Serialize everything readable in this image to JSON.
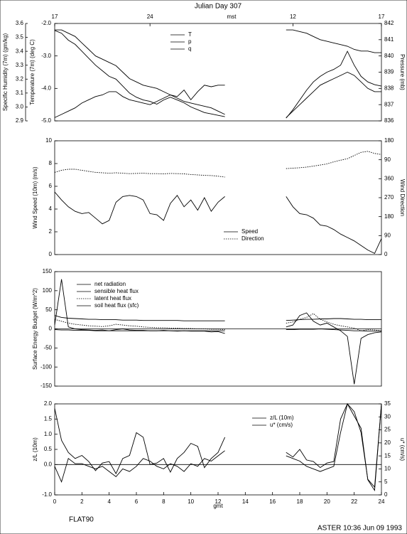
{
  "chart_data": [
    {
      "type": "line",
      "title": "Julian Day 307",
      "x2label": "mst",
      "x2ticks": [
        {
          "value": 0,
          "label": "17"
        },
        {
          "value": 7,
          "label": "24"
        },
        {
          "value": 17.5,
          "label": "12"
        },
        {
          "value": 24,
          "label": "17"
        }
      ],
      "ylabel": "Temperature (7m) (deg C)",
      "y2label": "Pressure (mb)",
      "y3label": "Specific Humidity (7m) (gm/kg)",
      "xlim": [
        0,
        24
      ],
      "ylim": [
        -5,
        -2
      ],
      "yticks": [
        {
          "value": -5,
          "label": "-5.0"
        },
        {
          "value": -4,
          "label": "-4.0"
        },
        {
          "value": -3,
          "label": "-3.0"
        },
        {
          "value": -2,
          "label": "-2.0"
        }
      ],
      "y2lim": [
        836,
        842
      ],
      "y2ticks": [
        836,
        837,
        838,
        839,
        840,
        841,
        842
      ],
      "y3lim": [
        2.9,
        3.6
      ],
      "y3ticks": [
        2.9,
        {
          "value": 3,
          "label": "3.0"
        },
        3.1,
        3.2,
        3.3,
        3.4,
        3.5,
        3.6
      ],
      "legend": "top-center",
      "x": [
        0,
        0.5,
        1,
        1.5,
        2,
        2.5,
        3,
        3.5,
        4,
        4.5,
        5,
        5.5,
        6,
        6.5,
        7,
        7.5,
        8,
        8.5,
        9,
        9.5,
        10,
        10.5,
        11,
        11.5,
        12,
        12.5,
        13,
        13.5,
        14,
        14.5,
        15,
        15.5,
        16,
        16.5,
        17,
        17.5,
        18,
        18.5,
        19,
        19.5,
        20,
        20.5,
        21,
        21.5,
        22,
        22.5,
        23,
        23.5,
        24
      ],
      "series": [
        {
          "name": "T",
          "color": "#000000",
          "style": "solid",
          "axis": "y",
          "values": [
            -2.2,
            -2.2,
            -2.3,
            -2.4,
            -2.6,
            -2.8,
            -3.0,
            -3.1,
            -3.2,
            -3.3,
            -3.5,
            -3.7,
            -3.8,
            -3.9,
            -3.95,
            -4.0,
            -4.1,
            -4.2,
            -4.3,
            -4.4,
            -4.45,
            -4.5,
            -4.55,
            -4.6,
            -4.7,
            -4.8,
            null,
            null,
            null,
            null,
            null,
            null,
            null,
            null,
            -4.9,
            -4.7,
            -4.5,
            -4.3,
            -4.1,
            -3.9,
            -3.8,
            -3.7,
            -3.6,
            -3.5,
            -3.6,
            -3.8,
            -4.0,
            -4.1,
            -4.1
          ]
        },
        {
          "name": "p",
          "color": "#000000",
          "style": "solid",
          "axis": "y2",
          "values": [
            836.2,
            836.4,
            836.6,
            836.8,
            837.1,
            837.3,
            837.5,
            837.6,
            837.8,
            837.8,
            837.5,
            837.3,
            837.2,
            837.1,
            837.0,
            837.2,
            837.4,
            837.6,
            837.5,
            837.9,
            837.3,
            837.8,
            838.2,
            838.1,
            838.2,
            838.2,
            null,
            null,
            null,
            null,
            null,
            null,
            null,
            null,
            841.6,
            841.6,
            841.5,
            841.4,
            841.2,
            841.0,
            840.9,
            840.8,
            840.7,
            840.6,
            840.4,
            840.3,
            840.3,
            840.2,
            840.2
          ]
        },
        {
          "name": "q",
          "color": "#000000",
          "style": "solid",
          "axis": "y3",
          "values": [
            3.55,
            3.53,
            3.48,
            3.45,
            3.4,
            3.35,
            3.3,
            3.26,
            3.22,
            3.2,
            3.15,
            3.1,
            3.07,
            3.05,
            3.04,
            3.02,
            3.05,
            3.07,
            3.05,
            3.03,
            3.0,
            2.98,
            2.96,
            2.95,
            2.94,
            2.93,
            null,
            null,
            null,
            null,
            null,
            null,
            null,
            null,
            2.92,
            2.98,
            3.05,
            3.12,
            3.18,
            3.22,
            3.25,
            3.27,
            3.3,
            3.4,
            3.3,
            3.22,
            3.18,
            3.16,
            3.15
          ]
        }
      ]
    },
    {
      "type": "line",
      "ylabel": "Wind Speed (10m) (m/s)",
      "y2label": "Wind Direction",
      "xlim": [
        0,
        24
      ],
      "ylim": [
        0,
        10
      ],
      "yticks": [
        0,
        2,
        4,
        6,
        8,
        10
      ],
      "y2lim": [
        0,
        540
      ],
      "y2ticks": [
        0,
        90,
        180,
        270,
        360,
        {
          "value": 450,
          "label": "90"
        },
        {
          "value": 540,
          "label": "180"
        }
      ],
      "legend": "bottom-center",
      "x": [
        0,
        0.5,
        1,
        1.5,
        2,
        2.5,
        3,
        3.5,
        4,
        4.5,
        5,
        5.5,
        6,
        6.5,
        7,
        7.5,
        8,
        8.5,
        9,
        9.5,
        10,
        10.5,
        11,
        11.5,
        12,
        12.5,
        13,
        13.5,
        14,
        14.5,
        15,
        15.5,
        16,
        16.5,
        17,
        17.5,
        18,
        18.5,
        19,
        19.5,
        20,
        20.5,
        21,
        21.5,
        22,
        22.5,
        23,
        23.5,
        24
      ],
      "series": [
        {
          "name": "Speed",
          "color": "#000000",
          "style": "solid",
          "axis": "y",
          "values": [
            5.5,
            4.8,
            4.2,
            3.8,
            3.6,
            3.7,
            3.2,
            2.7,
            3.0,
            4.6,
            5.1,
            5.2,
            5.1,
            4.8,
            3.6,
            3.5,
            3.0,
            4.5,
            5.2,
            4.2,
            4.8,
            3.9,
            5.0,
            3.8,
            4.6,
            5.1,
            null,
            null,
            null,
            null,
            null,
            null,
            null,
            null,
            5.1,
            4.2,
            3.6,
            3.5,
            3.2,
            2.6,
            2.5,
            2.2,
            1.8,
            1.5,
            1.2,
            0.8,
            0.4,
            0.1,
            1.4
          ]
        },
        {
          "name": "Direction",
          "color": "#000000",
          "style": "dotted",
          "axis": "y2",
          "values": [
            390,
            400,
            405,
            405,
            400,
            395,
            390,
            388,
            386,
            388,
            386,
            384,
            385,
            386,
            384,
            384,
            383,
            385,
            384,
            383,
            380,
            378,
            376,
            375,
            372,
            368,
            null,
            null,
            null,
            null,
            null,
            null,
            null,
            null,
            408,
            410,
            412,
            415,
            420,
            425,
            430,
            440,
            448,
            455,
            470,
            485,
            490,
            480,
            475
          ]
        }
      ]
    },
    {
      "type": "line",
      "ylabel": "Surface Energy Budget (W/m^2)",
      "zero_line": true,
      "xlim": [
        0,
        24
      ],
      "ylim": [
        -150,
        150
      ],
      "yticks": [
        -150,
        -100,
        -50,
        0,
        50,
        100,
        150
      ],
      "legend": "top-left",
      "x": [
        0,
        0.5,
        1,
        1.5,
        2,
        2.5,
        3,
        3.5,
        4,
        4.5,
        5,
        5.5,
        6,
        6.5,
        7,
        7.5,
        8,
        8.5,
        9,
        9.5,
        10,
        10.5,
        11,
        11.5,
        12,
        12.5,
        13,
        13.5,
        14,
        14.5,
        15,
        15.5,
        16,
        16.5,
        17,
        17.5,
        18,
        18.5,
        19,
        19.5,
        20,
        20.5,
        21,
        21.5,
        22,
        22.5,
        23,
        23.5,
        24
      ],
      "series": [
        {
          "name": "net radiation",
          "color": "#000000",
          "style": "solid",
          "axis": "y",
          "values": [
            10,
            130,
            5,
            0,
            -2,
            -3,
            -4,
            -3,
            -5,
            -2,
            0,
            -3,
            -4,
            -4,
            -5,
            -5,
            -4,
            -5,
            -6,
            -5,
            -6,
            -6,
            -6,
            -8,
            -7,
            -12,
            null,
            null,
            null,
            null,
            null,
            null,
            null,
            null,
            5,
            10,
            35,
            42,
            20,
            10,
            15,
            5,
            -5,
            -20,
            -145,
            -25,
            -15,
            -10,
            -8
          ]
        },
        {
          "name": "sensible heat flux",
          "color": "#000000",
          "style": "solid",
          "axis": "y",
          "values": [
            35,
            30,
            28,
            27,
            26,
            25,
            25,
            24,
            24,
            24,
            23,
            23,
            23,
            22,
            22,
            22,
            22,
            22,
            22,
            21,
            21,
            21,
            21,
            21,
            21,
            21,
            null,
            null,
            null,
            null,
            null,
            null,
            null,
            null,
            22,
            23,
            24,
            25,
            25,
            26,
            26,
            27,
            27,
            26,
            25,
            25,
            24,
            24,
            24
          ]
        },
        {
          "name": "latent heat flux",
          "color": "#000000",
          "style": "dotted",
          "axis": "y",
          "values": [
            25,
            20,
            15,
            12,
            10,
            8,
            7,
            6,
            8,
            12,
            10,
            8,
            7,
            5,
            4,
            3,
            3,
            2,
            2,
            1,
            1,
            0,
            0,
            -1,
            -1,
            -2,
            null,
            null,
            null,
            null,
            null,
            null,
            null,
            null,
            15,
            18,
            25,
            30,
            40,
            25,
            18,
            12,
            8,
            5,
            2,
            -5,
            -2,
            -3,
            -5
          ]
        },
        {
          "name": "soil heat flux (sfc)",
          "color": "#000000",
          "style": "solid",
          "axis": "y",
          "values": [
            -2,
            -3,
            -3,
            -4,
            -4,
            -4,
            -5,
            -5,
            -5,
            -5,
            -5,
            -5,
            -5,
            -5,
            -5,
            -5,
            -5,
            -5,
            -5,
            -5,
            -5,
            -5,
            -5,
            -5,
            -5,
            -5,
            null,
            null,
            null,
            null,
            null,
            null,
            null,
            null,
            -2,
            -2,
            -1,
            -1,
            -1,
            0,
            -1,
            -2,
            -3,
            -4,
            -5,
            -5,
            -6,
            -6,
            -6
          ]
        }
      ]
    },
    {
      "type": "line",
      "ylabel": "z/L (10m)",
      "y2label": "u* (cm/s)",
      "xlabel": "gmt",
      "zero_line": true,
      "annotations": [
        "FLAT90",
        "ASTER 10:36 Jun 09 1993"
      ],
      "xlim": [
        0,
        24
      ],
      "xticks": [
        0,
        2,
        4,
        6,
        8,
        10,
        12,
        14,
        16,
        18,
        20,
        22,
        24
      ],
      "ylim": [
        -1,
        2
      ],
      "yticks": [
        {
          "value": -1,
          "label": "-1.0"
        },
        {
          "value": 0,
          "label": "0.0"
        },
        0.5,
        {
          "value": 1,
          "label": "1.0"
        },
        1.5,
        {
          "value": 2,
          "label": "2.0"
        }
      ],
      "y2lim": [
        0,
        35
      ],
      "y2ticks": [
        0,
        5,
        10,
        15,
        20,
        25,
        30,
        35
      ],
      "legend": "top-right",
      "x": [
        0,
        0.5,
        1,
        1.5,
        2,
        2.5,
        3,
        3.5,
        4,
        4.5,
        5,
        5.5,
        6,
        6.5,
        7,
        7.5,
        8,
        8.5,
        9,
        9.5,
        10,
        10.5,
        11,
        11.5,
        12,
        12.5,
        13,
        13.5,
        14,
        14.5,
        15,
        15.5,
        16,
        16.5,
        17,
        17.5,
        18,
        18.5,
        19,
        19.5,
        20,
        20.5,
        21,
        21.5,
        22,
        22.5,
        23,
        23.5,
        24
      ],
      "series": [
        {
          "name": "z/L (10m)",
          "color": "#000000",
          "style": "solid",
          "axis": "y",
          "values": [
            1.85,
            0.8,
            0.4,
            0.2,
            0.3,
            0.1,
            -0.2,
            0.05,
            0.1,
            -0.3,
            0.2,
            0.3,
            1.05,
            0.9,
            0.0,
            0.05,
            0.2,
            -0.25,
            0.2,
            0.4,
            0.7,
            0.6,
            -0.1,
            0.2,
            0.4,
            0.9,
            null,
            null,
            null,
            null,
            null,
            null,
            null,
            null,
            0.4,
            0.25,
            0.5,
            0.15,
            0.1,
            -0.1,
            0.05,
            0.1,
            1.5,
            2.0,
            1.6,
            1.2,
            -0.5,
            -0.85,
            2.0
          ]
        },
        {
          "name": "u* (cm/s)",
          "color": "#000000",
          "style": "solid",
          "axis": "y2",
          "values": [
            11,
            5,
            14,
            12,
            12,
            11,
            10,
            11,
            9,
            7,
            10,
            9,
            11,
            14,
            13,
            11,
            10,
            12,
            11,
            9,
            12,
            11,
            14,
            13,
            15,
            17,
            null,
            null,
            null,
            null,
            null,
            null,
            null,
            null,
            15,
            14,
            13,
            11,
            10,
            9,
            10,
            11,
            24,
            35,
            32,
            24,
            6,
            3,
            35
          ]
        }
      ]
    }
  ]
}
